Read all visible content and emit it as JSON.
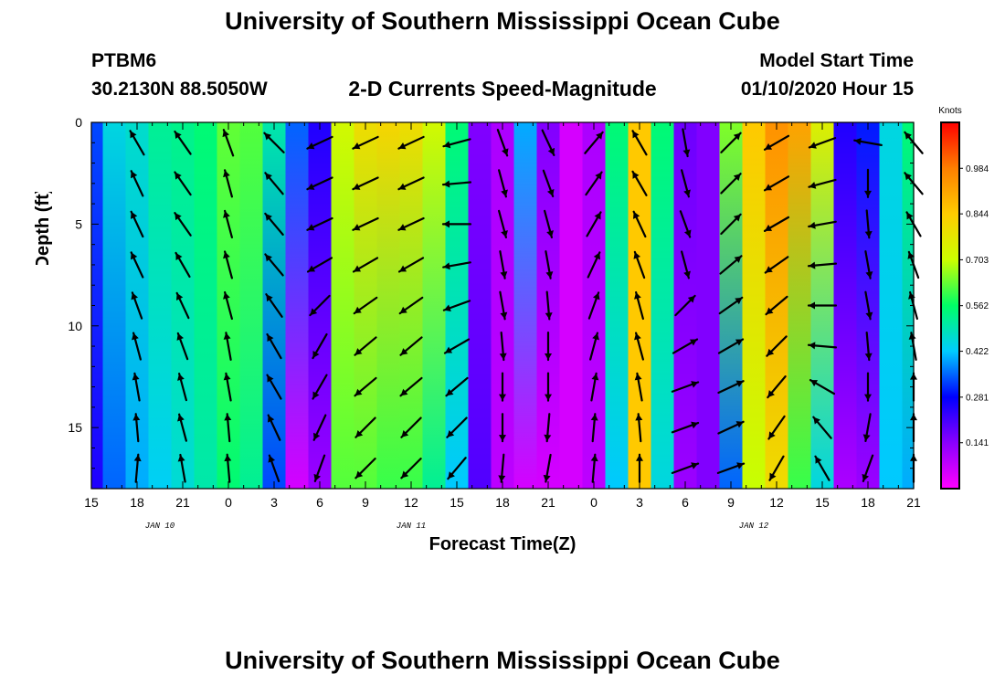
{
  "header": {
    "title": "University of Southern Mississippi Ocean Cube",
    "station_id": "PTBM6",
    "station_coords": "30.2130N 88.5050W",
    "chart_title": "2-D Currents Speed-Magnitude",
    "model_start_label": "Model Start Time",
    "model_start_value": "01/10/2020 Hour 15"
  },
  "footer": {
    "title": "University of Southern Mississippi Ocean Cube"
  },
  "colors": {
    "scale": [
      "#ff00ff",
      "#8a00ff",
      "#0000ff",
      "#00ccff",
      "#00ff66",
      "#ccff00",
      "#ffcc00",
      "#ff7f00",
      "#ff0000"
    ],
    "arrow": "#000000"
  },
  "chart_data": {
    "type": "heatmap",
    "title": "2-D Currents Speed-Magnitude",
    "xlabel": "Forecast Time(Z)",
    "ylabel": "Depth (ft)",
    "x_range_hours": [
      0,
      54
    ],
    "y_range_ft": [
      0,
      18
    ],
    "x_ticks": [
      {
        "hour": 0,
        "label": "15"
      },
      {
        "hour": 3,
        "label": "18"
      },
      {
        "hour": 6,
        "label": "21"
      },
      {
        "hour": 9,
        "label": "0"
      },
      {
        "hour": 12,
        "label": "3"
      },
      {
        "hour": 15,
        "label": "6"
      },
      {
        "hour": 18,
        "label": "9"
      },
      {
        "hour": 21,
        "label": "12"
      },
      {
        "hour": 24,
        "label": "15"
      },
      {
        "hour": 27,
        "label": "18"
      },
      {
        "hour": 30,
        "label": "21"
      },
      {
        "hour": 33,
        "label": "0"
      },
      {
        "hour": 36,
        "label": "3"
      },
      {
        "hour": 39,
        "label": "6"
      },
      {
        "hour": 42,
        "label": "9"
      },
      {
        "hour": 45,
        "label": "12"
      },
      {
        "hour": 48,
        "label": "15"
      },
      {
        "hour": 51,
        "label": "18"
      },
      {
        "hour": 54,
        "label": "21"
      }
    ],
    "y_ticks": [
      {
        "depth": 0,
        "label": "0"
      },
      {
        "depth": 5,
        "label": "5"
      },
      {
        "depth": 10,
        "label": "10"
      },
      {
        "depth": 15,
        "label": "15"
      }
    ],
    "date_labels": [
      {
        "hour": 4.5,
        "label": "JAN 10"
      },
      {
        "hour": 21,
        "label": "JAN 11"
      },
      {
        "hour": 43.5,
        "label": "JAN 12"
      }
    ],
    "colorbar": {
      "unit": "Knots",
      "range": [
        0,
        1.125
      ],
      "ticks": [
        "0.141",
        "0.281",
        "0.422",
        "0.562",
        "0.703",
        "0.844",
        "0.984"
      ]
    },
    "speed_columns": {
      "hours": [
        0,
        1.5,
        3,
        4.5,
        6,
        7.5,
        9,
        10.5,
        12,
        13.5,
        15,
        16.5,
        18,
        19.5,
        21,
        22.5,
        24,
        25.5,
        27,
        28.5,
        30,
        31.5,
        33,
        34.5,
        36,
        37.5,
        39,
        40.5,
        42,
        43.5,
        45,
        46.5,
        48,
        49.5,
        51,
        52.5,
        54
      ],
      "top_knots": [
        0.33,
        0.45,
        0.47,
        0.52,
        0.53,
        0.55,
        0.63,
        0.62,
        0.5,
        0.35,
        0.25,
        0.72,
        0.8,
        0.82,
        0.8,
        0.72,
        0.55,
        0.15,
        0.1,
        0.4,
        0.15,
        0.05,
        0.1,
        0.55,
        0.85,
        0.55,
        0.17,
        0.15,
        0.65,
        0.85,
        0.95,
        0.92,
        0.75,
        0.25,
        0.3,
        0.45,
        0.55
      ],
      "bottom_knots": [
        0.25,
        0.35,
        0.4,
        0.43,
        0.46,
        0.5,
        0.55,
        0.52,
        0.33,
        0.05,
        0.12,
        0.62,
        0.62,
        0.6,
        0.6,
        0.52,
        0.42,
        0.2,
        0.08,
        0.05,
        0.05,
        0.05,
        0.08,
        0.42,
        0.85,
        0.45,
        0.12,
        0.15,
        0.35,
        0.7,
        0.8,
        0.6,
        0.45,
        0.1,
        0.12,
        0.42,
        0.4
      ]
    },
    "current_vectors": {
      "depths_ft": [
        1,
        3,
        5,
        7,
        9,
        11,
        13,
        15,
        17
      ],
      "columns": [
        {
          "hour": 3,
          "directions_deg": [
            330,
            335,
            335,
            335,
            340,
            345,
            350,
            355,
            5
          ]
        },
        {
          "hour": 6,
          "directions_deg": [
            325,
            325,
            325,
            330,
            335,
            340,
            345,
            345,
            350
          ]
        },
        {
          "hour": 9,
          "directions_deg": [
            340,
            345,
            345,
            345,
            345,
            350,
            350,
            355,
            355
          ]
        },
        {
          "hour": 12,
          "directions_deg": [
            315,
            320,
            320,
            320,
            325,
            330,
            330,
            335,
            340
          ]
        },
        {
          "hour": 15,
          "directions_deg": [
            245,
            245,
            245,
            240,
            225,
            210,
            210,
            205,
            200
          ]
        },
        {
          "hour": 18,
          "directions_deg": [
            245,
            245,
            245,
            240,
            235,
            230,
            230,
            225,
            225
          ]
        },
        {
          "hour": 21,
          "directions_deg": [
            245,
            245,
            245,
            240,
            235,
            230,
            230,
            225,
            225
          ]
        },
        {
          "hour": 24,
          "directions_deg": [
            255,
            265,
            270,
            260,
            250,
            240,
            230,
            225,
            220
          ]
        },
        {
          "hour": 27,
          "directions_deg": [
            160,
            165,
            165,
            170,
            170,
            175,
            180,
            180,
            185
          ]
        },
        {
          "hour": 30,
          "directions_deg": [
            155,
            160,
            165,
            170,
            175,
            180,
            180,
            185,
            190
          ]
        },
        {
          "hour": 33,
          "directions_deg": [
            40,
            35,
            30,
            25,
            20,
            15,
            10,
            5,
            5
          ]
        },
        {
          "hour": 36,
          "directions_deg": [
            330,
            330,
            335,
            340,
            345,
            345,
            350,
            355,
            0
          ]
        },
        {
          "hour": 39,
          "directions_deg": [
            170,
            165,
            160,
            165,
            45,
            60,
            70,
            70,
            70
          ]
        },
        {
          "hour": 42,
          "directions_deg": [
            45,
            45,
            45,
            50,
            55,
            60,
            65,
            65,
            70
          ]
        },
        {
          "hour": 45,
          "directions_deg": [
            240,
            240,
            240,
            235,
            230,
            225,
            220,
            215,
            210
          ]
        },
        {
          "hour": 48,
          "directions_deg": [
            250,
            255,
            260,
            265,
            270,
            275,
            300,
            320,
            330
          ]
        },
        {
          "hour": 51,
          "directions_deg": [
            280,
            180,
            175,
            170,
            170,
            175,
            180,
            190,
            200
          ]
        },
        {
          "hour": 54,
          "directions_deg": [
            320,
            320,
            330,
            340,
            345,
            350,
            0,
            0,
            0
          ]
        }
      ]
    }
  }
}
